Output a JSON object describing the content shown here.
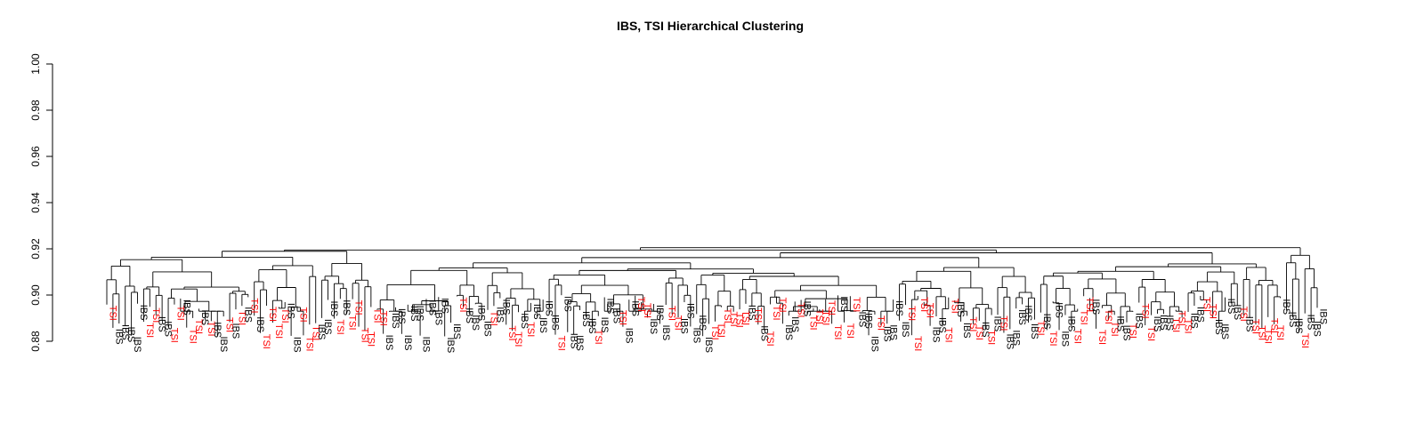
{
  "chart_data": {
    "type": "dendrogram",
    "title": "IBS, TSI Hierarchical Clustering",
    "xlabel": "",
    "ylabel": "",
    "ylim": [
      0.88,
      1.0
    ],
    "y_ticks": [
      "0.88",
      "0.90",
      "0.92",
      "0.94",
      "0.96",
      "0.98",
      "1.00"
    ],
    "y_tick_values": [
      0.88,
      0.9,
      0.92,
      0.94,
      0.96,
      0.98,
      1.0
    ],
    "grid": false,
    "groups": [
      {
        "label": "IBS",
        "color": "#000000"
      },
      {
        "label": "TSI",
        "color": "#ff0000"
      }
    ],
    "root_height": 0.9205,
    "leaf_count": 198,
    "leaf_labels": [
      "IBS",
      "TSI"
    ]
  }
}
